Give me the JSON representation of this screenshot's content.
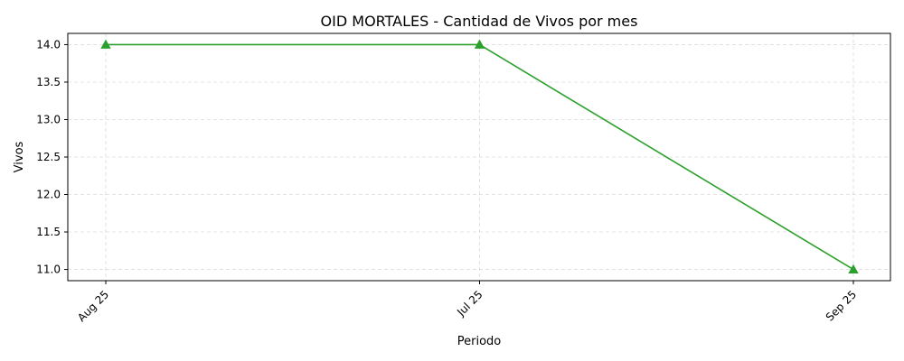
{
  "chart_data": {
    "type": "line",
    "title": "OID MORTALES - Cantidad de Vivos por mes",
    "xlabel": "Periodo",
    "ylabel": "Vivos",
    "categories": [
      "Aug 25",
      "Jul 25",
      "Sep 25"
    ],
    "series": [
      {
        "values": [
          14.0,
          14.0,
          11.0
        ],
        "color": "#2ca02c",
        "marker": "triangle"
      }
    ],
    "ylim": [
      10.85,
      14.15
    ],
    "yticks": [
      "11.0",
      "11.5",
      "12.0",
      "12.5",
      "13.0",
      "13.5",
      "14.0"
    ],
    "grid": true
  }
}
